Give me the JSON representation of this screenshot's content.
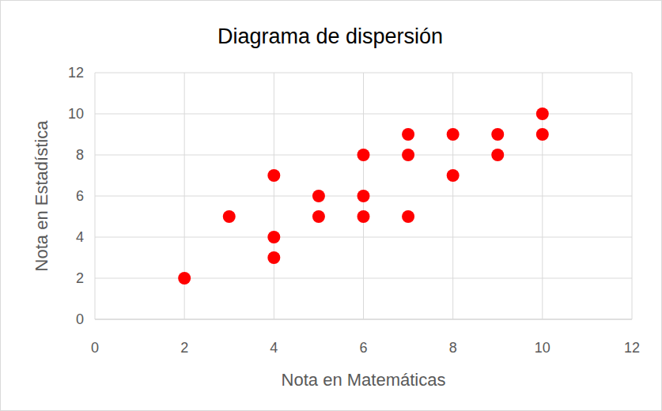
{
  "chart_data": {
    "type": "scatter",
    "title": "Diagrama de dispersión",
    "x_label": "Nota en Matemáticas",
    "y_label": "Nota en Estadística",
    "x": [
      2,
      3,
      4,
      4,
      4,
      5,
      5,
      6,
      6,
      6,
      7,
      7,
      7,
      8,
      8,
      9,
      9,
      10,
      10
    ],
    "y": [
      2,
      5,
      7,
      4,
      3,
      6,
      5,
      8,
      6,
      5,
      9,
      8,
      5,
      9,
      7,
      9,
      8,
      10,
      9
    ],
    "color": "#ff0000",
    "marker": "circle",
    "xlim": [
      0,
      12
    ],
    "ylim": [
      0,
      12
    ],
    "xticks": [
      0,
      2,
      4,
      6,
      8,
      10,
      12
    ],
    "yticks": [
      0,
      2,
      4,
      6,
      8,
      10,
      12
    ],
    "grid": true
  }
}
